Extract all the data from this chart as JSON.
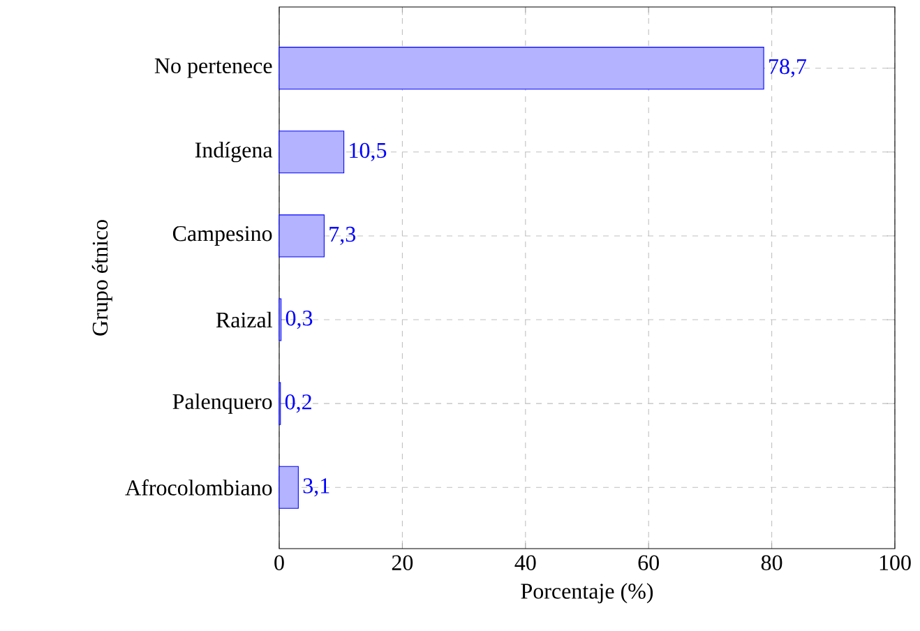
{
  "chart_data": {
    "type": "bar",
    "orientation": "horizontal",
    "xlabel": "Porcentaje (%)",
    "ylabel": "Grupo étnico",
    "categories": [
      "No pertenece",
      "Indígena",
      "Campesino",
      "Raizal",
      "Palenquero",
      "Afrocolombiano"
    ],
    "values": [
      78.7,
      10.5,
      7.3,
      0.3,
      0.2,
      3.1
    ],
    "value_labels": [
      "78,7",
      "10,5",
      "7,3",
      "0,3",
      "0,2",
      "3,1"
    ],
    "color": "#b3b3ff",
    "xlim": [
      0,
      100
    ],
    "xticks": [
      0,
      20,
      40,
      60,
      80,
      100
    ],
    "grid": true
  }
}
